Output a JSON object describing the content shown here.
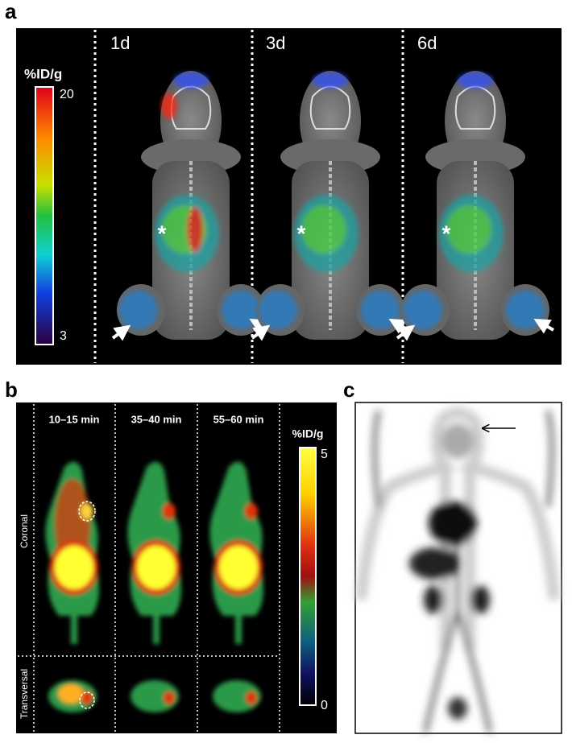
{
  "panel_a": {
    "label": "a",
    "colorbar": {
      "title": "%ID/g",
      "max": "20",
      "min": "3"
    },
    "frames": [
      {
        "time": "1d",
        "asterisk": "*"
      },
      {
        "time": "3d",
        "asterisk": "*"
      },
      {
        "time": "6d",
        "asterisk": "*"
      }
    ]
  },
  "panel_b": {
    "label": "b",
    "times": [
      "10–15 min",
      "35–40 min",
      "55–60 min"
    ],
    "rows": [
      "Coronal",
      "Transversal"
    ],
    "colorbar": {
      "title": "%ID/g",
      "max": "5",
      "min": "0"
    }
  },
  "panel_c": {
    "label": "c"
  }
}
